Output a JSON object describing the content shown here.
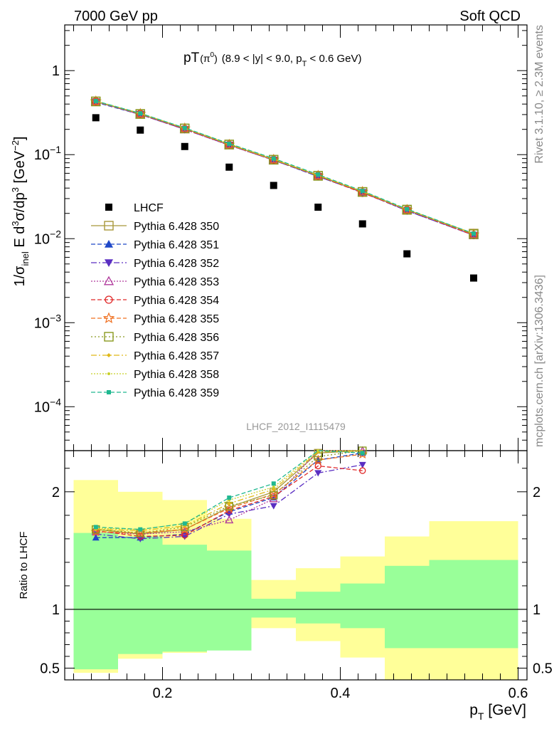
{
  "header": {
    "left": "7000 GeV pp",
    "right": "Soft QCD"
  },
  "plot_title": {
    "main": "pT",
    "particle": "(π",
    "particle_sup": "0",
    "particle_close": ")",
    "cuts_a": "(8.9 < |y| < 9.0, p",
    "cuts_sub": "T",
    "cuts_b": " < 0.6 GeV)"
  },
  "side_text": {
    "rivet": "Rivet 3.1.10, ≥ 2.3M events",
    "mcplots": "mcplots.cern.ch [arXiv:1306.3436]"
  },
  "analysis_id": "LHCF_2012_I1115479",
  "y_axis_main": {
    "p1": "1/σ",
    "p1_sub": "inel",
    "p2": " E d",
    "p2_sup": "3",
    "p3": "σ/dp",
    "p3_sup": "3",
    "p4": " [GeV",
    "p4_sup": "−2",
    "p5": "]"
  },
  "y_axis_ratio": "Ratio to LHCF",
  "x_axis": {
    "p": "p",
    "sub": "T",
    "unit": " [GeV]"
  },
  "main_ticks": [
    {
      "base": "1",
      "exp": ""
    },
    {
      "base": "10",
      "exp": "−1"
    },
    {
      "base": "10",
      "exp": "−2"
    },
    {
      "base": "10",
      "exp": "−3"
    },
    {
      "base": "10",
      "exp": "−4"
    }
  ],
  "ratio_ticks": [
    "2",
    "1",
    "0.5"
  ],
  "x_ticks": [
    "0.2",
    "0.4",
    "0.6"
  ],
  "chart_data": {
    "type": "scatter",
    "x_label": "pT [GeV]",
    "y_label": "1/σinel E d3σ/dp3 [GeV−2]",
    "y_scale": "log",
    "x_range": [
      0.09,
      0.61
    ],
    "y_range": [
      3e-05,
      3.5
    ],
    "ratio_range": [
      0.4,
      2.35
    ],
    "ratio_ticks": [
      2,
      1,
      0.5
    ],
    "legend_position": "left",
    "x_bins": [
      [
        0.1,
        0.15
      ],
      [
        0.15,
        0.2
      ],
      [
        0.2,
        0.25
      ],
      [
        0.25,
        0.3
      ],
      [
        0.3,
        0.35
      ],
      [
        0.35,
        0.4
      ],
      [
        0.4,
        0.45
      ],
      [
        0.45,
        0.5
      ],
      [
        0.5,
        0.6
      ]
    ],
    "x_points": [
      0.125,
      0.175,
      0.225,
      0.275,
      0.325,
      0.375,
      0.425,
      0.475,
      0.55
    ],
    "data": {
      "name": "LHCF",
      "values": [
        0.275,
        0.196,
        0.125,
        0.071,
        0.043,
        0.0237,
        0.015,
        0.0066,
        0.0034
      ],
      "band_inner": [
        [
          0.49,
          1.65
        ],
        [
          0.62,
          1.62
        ],
        [
          0.64,
          1.55
        ],
        [
          0.65,
          1.5
        ],
        [
          0.93,
          1.09
        ],
        [
          0.88,
          1.15
        ],
        [
          0.84,
          1.22
        ],
        [
          0.67,
          1.37
        ],
        [
          0.67,
          1.42
        ]
      ],
      "band_outer": [
        [
          0.46,
          2.1
        ],
        [
          0.58,
          2.0
        ],
        [
          0.63,
          1.93
        ],
        [
          0.68,
          1.77
        ],
        [
          0.84,
          1.25
        ],
        [
          0.73,
          1.35
        ],
        [
          0.59,
          1.45
        ],
        [
          0.3,
          1.62
        ],
        [
          0.3,
          1.75
        ]
      ]
    },
    "series": [
      {
        "name": "Pythia 6.428 350",
        "color": "#a8983a",
        "dash": "",
        "marker": "square-open",
        "values": [
          0.43,
          0.305,
          0.205,
          0.132,
          0.087,
          0.056,
          0.036,
          0.022,
          0.0115
        ],
        "ratio": [
          1.68,
          1.64,
          1.68,
          1.87,
          2.0,
          2.33,
          2.38
        ]
      },
      {
        "name": "Pythia 6.428 351",
        "color": "#1f48c8",
        "dash": "6,3",
        "marker": "triangle-up",
        "values": [
          0.42,
          0.3,
          0.2,
          0.13,
          0.086,
          0.055,
          0.0355,
          0.0215,
          0.011
        ],
        "ratio": [
          1.61,
          1.61,
          1.64,
          1.83,
          1.95,
          2.27,
          2.33
        ]
      },
      {
        "name": "Pythia 6.428 352",
        "color": "#5a2ec2",
        "dash": "8,3,2,3",
        "marker": "triangle-down",
        "values": [
          0.425,
          0.302,
          0.2,
          0.13,
          0.086,
          0.055,
          0.0355,
          0.0215,
          0.011
        ],
        "ratio": [
          1.64,
          1.6,
          1.62,
          1.81,
          1.88,
          2.16,
          2.23
        ]
      },
      {
        "name": "Pythia 6.428 353",
        "color": "#b03a9c",
        "dash": "2,2",
        "marker": "triangle-open",
        "values": [
          0.43,
          0.3,
          0.2,
          0.129,
          0.086,
          0.056,
          0.0355,
          0.0218,
          0.011
        ],
        "ratio": [
          1.66,
          1.64,
          1.66,
          1.76,
          1.94,
          2.38,
          2.35
        ]
      },
      {
        "name": "Pythia 6.428 354",
        "color": "#e02828",
        "dash": "6,3",
        "marker": "circle-open",
        "values": [
          0.43,
          0.305,
          0.202,
          0.131,
          0.087,
          0.056,
          0.035,
          0.022,
          0.011
        ],
        "ratio": [
          1.67,
          1.62,
          1.63,
          1.84,
          1.96,
          2.22,
          2.18
        ]
      },
      {
        "name": "Pythia 6.428 355",
        "color": "#f07020",
        "dash": "6,3",
        "marker": "star-open",
        "values": [
          0.43,
          0.305,
          0.205,
          0.131,
          0.087,
          0.056,
          0.036,
          0.022,
          0.0112
        ],
        "ratio": [
          1.66,
          1.65,
          1.68,
          1.86,
          1.98,
          2.27,
          2.32
        ]
      },
      {
        "name": "Pythia 6.428 356",
        "color": "#8a9a20",
        "dash": "2,3",
        "marker": "square-open",
        "values": [
          0.43,
          0.305,
          0.205,
          0.132,
          0.087,
          0.056,
          0.036,
          0.0222,
          0.0113
        ],
        "ratio": [
          1.68,
          1.65,
          1.7,
          1.88,
          1.97,
          2.3,
          2.35
        ]
      },
      {
        "name": "Pythia 6.428 357",
        "color": "#e0b818",
        "dash": "8,3,2,3",
        "marker": "small-diamond",
        "values": [
          0.43,
          0.31,
          0.206,
          0.133,
          0.088,
          0.057,
          0.0365,
          0.0222,
          0.0115
        ],
        "ratio": [
          1.68,
          1.67,
          1.71,
          1.9,
          2.02,
          2.34,
          2.37
        ]
      },
      {
        "name": "Pythia 6.428 358",
        "color": "#c8d028",
        "dash": "2,2",
        "marker": "small-dot",
        "values": [
          0.435,
          0.31,
          0.207,
          0.135,
          0.089,
          0.057,
          0.0365,
          0.0223,
          0.0115
        ],
        "ratio": [
          1.69,
          1.68,
          1.73,
          1.93,
          2.04,
          2.35,
          2.38
        ]
      },
      {
        "name": "Pythia 6.428 359",
        "color": "#20b890",
        "dash": "6,3",
        "marker": "square-small",
        "values": [
          0.435,
          0.31,
          0.208,
          0.135,
          0.09,
          0.058,
          0.037,
          0.0225,
          0.0115
        ],
        "ratio": [
          1.7,
          1.68,
          1.73,
          1.95,
          2.07,
          2.38,
          2.33
        ]
      }
    ]
  }
}
